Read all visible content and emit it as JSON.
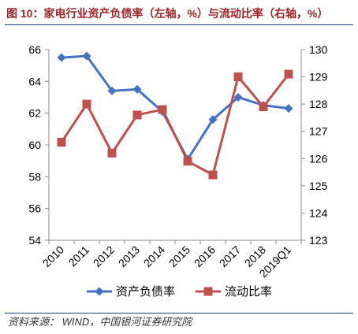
{
  "source": "资料来源： WIND，中国银河证券研究院",
  "colors": {
    "title": "#a0252a",
    "rule": "#1f3b73",
    "axis": "#8c8c8c",
    "source_text": "#333333"
  },
  "chart_data": {
    "type": "line",
    "title": "图 10：家电行业资产负债率（左轴，%）与流动比率（右轴，%）",
    "categories": [
      "2010",
      "2011",
      "2012",
      "2013",
      "2014",
      "2015",
      "2016",
      "2017",
      "2018",
      "2019Q1"
    ],
    "y_left": {
      "min": 54,
      "max": 66,
      "ticks": [
        54,
        56,
        58,
        60,
        62,
        64,
        66
      ]
    },
    "y_right": {
      "min": 123,
      "max": 130,
      "ticks": [
        123,
        124,
        125,
        126,
        127,
        128,
        129,
        130
      ]
    },
    "series": [
      {
        "name": "资产负债率",
        "axis": "left",
        "marker": "diamond",
        "color": "#4472c4",
        "values": [
          65.5,
          65.6,
          63.4,
          63.5,
          62.1,
          59.1,
          61.6,
          63.0,
          62.5,
          62.3
        ]
      },
      {
        "name": "流动比率",
        "axis": "right",
        "marker": "square",
        "color": "#c0504d",
        "values": [
          126.6,
          128.0,
          126.2,
          127.6,
          127.8,
          125.9,
          125.4,
          129.0,
          127.9,
          129.1
        ]
      }
    ],
    "grid": false,
    "legend": "bottom"
  }
}
